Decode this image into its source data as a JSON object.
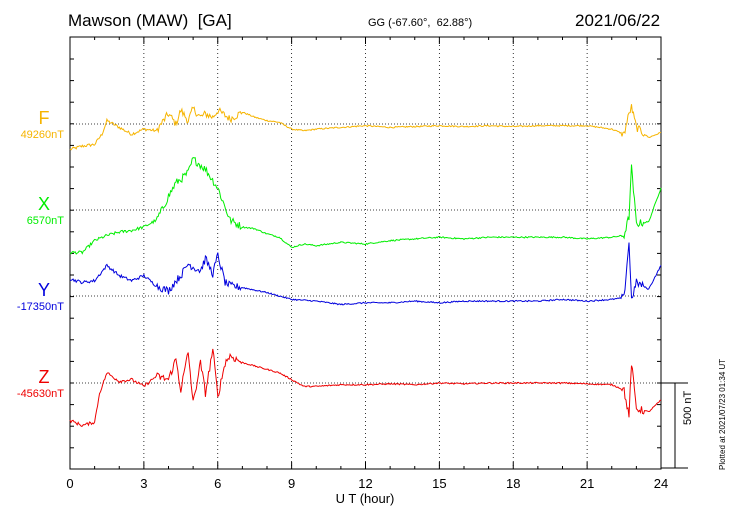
{
  "header": {
    "station": "Mawson (MAW)  [GA]",
    "coords": "GG (-67.60°,  62.88°)",
    "date": "2021/06/22"
  },
  "footer": {
    "plotted": "Plotted at 2021/07/23 01:34 UT"
  },
  "chart_data": {
    "type": "line",
    "xlabel": "U T (hour)",
    "xlim": [
      0,
      24
    ],
    "xticks": [
      0,
      3,
      6,
      9,
      12,
      15,
      18,
      21,
      24
    ],
    "grid": true,
    "scale_bar": {
      "value_nT": 500,
      "label": "500 nT"
    },
    "series": [
      {
        "name": "F",
        "base_label": "49260nT",
        "color": "#f6b400",
        "x": [
          0,
          0.5,
          1,
          1.3,
          1.5,
          2,
          2.5,
          3,
          3.5,
          3.8,
          4,
          4.3,
          4.5,
          4.8,
          5,
          5.3,
          5.5,
          5.8,
          6,
          6.3,
          6.5,
          7,
          7.5,
          8,
          8.5,
          9,
          9.5,
          10,
          11,
          12,
          13,
          14,
          15,
          16,
          17,
          18,
          19,
          20,
          21,
          22,
          22.5,
          22.7,
          22.8,
          23,
          23.5,
          24
        ],
        "values": [
          -150,
          -130,
          -120,
          -60,
          20,
          -20,
          -60,
          -30,
          -40,
          20,
          60,
          0,
          80,
          20,
          90,
          40,
          60,
          40,
          80,
          50,
          30,
          70,
          40,
          20,
          10,
          -30,
          -40,
          -30,
          -20,
          -10,
          -20,
          -15,
          -10,
          -15,
          -10,
          -15,
          -10,
          -10,
          -10,
          -30,
          -60,
          60,
          100,
          -20,
          -80,
          -50
        ]
      },
      {
        "name": "X",
        "base_label": "6570nT",
        "color": "#00ee00",
        "x": [
          0,
          0.5,
          1,
          1.5,
          2,
          2.5,
          3,
          3.5,
          3.7,
          4,
          4.3,
          4.5,
          4.8,
          5,
          5.5,
          6,
          6.5,
          7,
          7.5,
          8,
          8.5,
          9,
          9.5,
          10,
          11,
          12,
          13,
          14,
          15,
          16,
          17,
          18,
          19,
          20,
          21,
          22,
          22.5,
          22.7,
          22.8,
          23,
          23.5,
          24
        ],
        "values": [
          -250,
          -250,
          -180,
          -150,
          -130,
          -120,
          -100,
          -60,
          -10,
          80,
          160,
          180,
          220,
          300,
          240,
          130,
          -60,
          -100,
          -110,
          -140,
          -160,
          -220,
          -200,
          -210,
          -190,
          -200,
          -180,
          -170,
          -160,
          -170,
          -160,
          -160,
          -160,
          -160,
          -170,
          -160,
          -150,
          -40,
          250,
          -80,
          -70,
          130
        ]
      },
      {
        "name": "Y",
        "base_label": "-17350nT",
        "color": "#0000dd",
        "x": [
          0,
          0.5,
          1,
          1.5,
          2,
          2.5,
          3,
          3.5,
          4,
          4.3,
          4.5,
          4.8,
          5,
          5.3,
          5.5,
          5.8,
          6,
          6.3,
          6.5,
          7,
          8,
          9,
          10,
          11,
          12,
          13,
          14,
          15,
          16,
          17,
          18,
          19,
          20,
          21,
          22,
          22.5,
          22.7,
          22.8,
          23,
          23.5,
          24
        ],
        "values": [
          100,
          80,
          90,
          180,
          120,
          90,
          120,
          60,
          30,
          90,
          120,
          190,
          170,
          150,
          220,
          130,
          240,
          80,
          60,
          50,
          20,
          -20,
          -30,
          -50,
          -40,
          -40,
          -30,
          -40,
          -30,
          -30,
          -30,
          -30,
          -20,
          -30,
          -20,
          -10,
          320,
          -20,
          80,
          40,
          180
        ]
      },
      {
        "name": "Z",
        "base_label": "-45630nT",
        "color": "#ee0000",
        "x": [
          0,
          0.5,
          1,
          1.2,
          1.5,
          2,
          2.5,
          3,
          3.5,
          4,
          4.3,
          4.5,
          4.8,
          5,
          5.3,
          5.5,
          5.8,
          6,
          6.3,
          6.5,
          7,
          7.5,
          8,
          8.5,
          9,
          9.5,
          10,
          11,
          12,
          13,
          14,
          15,
          16,
          17,
          18,
          19,
          20,
          21,
          22,
          22.5,
          22.7,
          22.8,
          23,
          23.5,
          24
        ],
        "values": [
          -220,
          -250,
          -230,
          -60,
          60,
          10,
          20,
          -20,
          40,
          20,
          140,
          -40,
          180,
          -120,
          120,
          -60,
          200,
          -80,
          120,
          160,
          120,
          100,
          80,
          60,
          20,
          -20,
          -20,
          -10,
          -10,
          -5,
          -10,
          0,
          -5,
          0,
          0,
          0,
          0,
          -5,
          -10,
          -40,
          -200,
          120,
          -150,
          -170,
          -100
        ]
      }
    ]
  }
}
